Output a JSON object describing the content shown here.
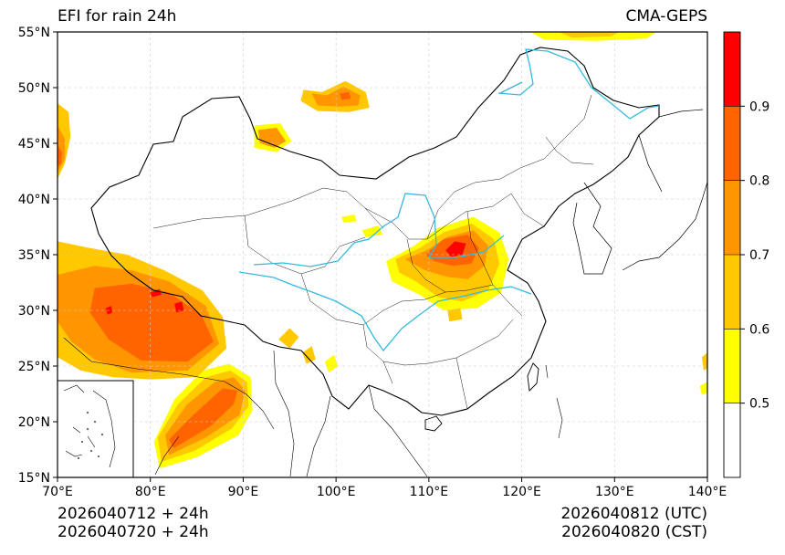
{
  "header": {
    "title": "EFI for rain 24h",
    "source": "CMA-GEPS"
  },
  "footer": {
    "init_utc": "2026040712 + 24h",
    "init_cst": "2026040720 + 24h",
    "valid_utc": "2026040812 (UTC)",
    "valid_cst": "2026040820 (CST)"
  },
  "map": {
    "extent": {
      "lon_min": 70,
      "lon_max": 140,
      "lat_min": 15,
      "lat_max": 55
    },
    "lat_ticks": [
      {
        "value": 55,
        "label": "55°N"
      },
      {
        "value": 50,
        "label": "50°N"
      },
      {
        "value": 45,
        "label": "45°N"
      },
      {
        "value": 40,
        "label": "40°N"
      },
      {
        "value": 35,
        "label": "35°N"
      },
      {
        "value": 30,
        "label": "30°N"
      },
      {
        "value": 25,
        "label": "25°N"
      },
      {
        "value": 20,
        "label": "20°N"
      },
      {
        "value": 15,
        "label": "15°N"
      }
    ],
    "lon_ticks": [
      {
        "value": 70,
        "label": "70°E"
      },
      {
        "value": 80,
        "label": "80°E"
      },
      {
        "value": 90,
        "label": "90°E"
      },
      {
        "value": 100,
        "label": "100°E"
      },
      {
        "value": 110,
        "label": "110°E"
      },
      {
        "value": 120,
        "label": "120°E"
      },
      {
        "value": 130,
        "label": "130°E"
      },
      {
        "value": 140,
        "label": "140°E"
      }
    ],
    "grid": true,
    "inset": "south-china-sea-islands"
  },
  "colorbar": {
    "levels": [
      0.5,
      0.6,
      0.7,
      0.8,
      0.9
    ],
    "labels": [
      "0.5",
      "0.6",
      "0.7",
      "0.8",
      "0.9"
    ],
    "colors": [
      "#ffffff",
      "#ffff00",
      "#ffc800",
      "#ff9600",
      "#ff6400",
      "#ff0000"
    ]
  },
  "colors": {
    "rivers": "#33bbdd",
    "border": "#000000",
    "grid": "#cccccc"
  },
  "regions": [
    {
      "name": "tibet-plateau-high",
      "level": 0.9,
      "pts": [
        [
          82.6,
          30.6
        ],
        [
          82.8,
          29.8
        ],
        [
          83.6,
          30.0
        ],
        [
          83.4,
          30.8
        ]
      ]
    },
    {
      "name": "tibet-plateau-high",
      "level": 0.9,
      "pts": [
        [
          75.4,
          29.6
        ],
        [
          75.9,
          29.8
        ],
        [
          75.8,
          30.4
        ],
        [
          75.2,
          30.2
        ]
      ]
    },
    {
      "name": "tibet-plateau-high",
      "level": 0.9,
      "pts": [
        [
          80.2,
          31.2
        ],
        [
          81.2,
          31.4
        ],
        [
          81.0,
          31.9
        ],
        [
          80.0,
          31.6
        ]
      ]
    },
    {
      "name": "tibet-plateau-mid",
      "level": 0.8,
      "pts": [
        [
          74.0,
          32.0
        ],
        [
          78.0,
          32.4
        ],
        [
          82.0,
          31.6
        ],
        [
          85.5,
          29.6
        ],
        [
          86.8,
          27.2
        ],
        [
          84.0,
          25.4
        ],
        [
          79.0,
          25.5
        ],
        [
          75.5,
          27.4
        ],
        [
          73.5,
          29.8
        ]
      ]
    },
    {
      "name": "tibet-plateau-low",
      "level": 0.7,
      "pts": [
        [
          70.0,
          33.2
        ],
        [
          74.0,
          34.0
        ],
        [
          78.0,
          33.6
        ],
        [
          82.0,
          32.6
        ],
        [
          86.0,
          30.4
        ],
        [
          87.4,
          27.0
        ],
        [
          84.0,
          24.6
        ],
        [
          78.0,
          24.4
        ],
        [
          74.0,
          25.6
        ],
        [
          71.5,
          27.2
        ],
        [
          70.0,
          29.0
        ]
      ]
    },
    {
      "name": "tibet-plateau-edge",
      "level": 0.6,
      "pts": [
        [
          70.0,
          36.2
        ],
        [
          73.5,
          35.6
        ],
        [
          77.5,
          35.0
        ],
        [
          81.5,
          33.6
        ],
        [
          85.6,
          31.8
        ],
        [
          87.8,
          29.4
        ],
        [
          88.2,
          26.6
        ],
        [
          85.0,
          24.0
        ],
        [
          80.0,
          23.8
        ],
        [
          76.0,
          24.0
        ],
        [
          72.5,
          24.6
        ],
        [
          70.0,
          25.8
        ]
      ]
    },
    {
      "name": "bay-of-bengal-high",
      "level": 0.8,
      "pts": [
        [
          82.5,
          17.6
        ],
        [
          86.5,
          19.6
        ],
        [
          89.0,
          21.6
        ],
        [
          89.4,
          22.8
        ],
        [
          87.8,
          23.0
        ],
        [
          84.6,
          20.6
        ],
        [
          82.0,
          18.4
        ]
      ]
    },
    {
      "name": "bay-of-bengal-mid",
      "level": 0.7,
      "pts": [
        [
          82.0,
          17.0
        ],
        [
          86.0,
          18.6
        ],
        [
          89.6,
          20.6
        ],
        [
          90.2,
          22.8
        ],
        [
          89.0,
          24.0
        ],
        [
          87.0,
          23.6
        ],
        [
          84.0,
          21.6
        ],
        [
          81.6,
          18.8
        ]
      ]
    },
    {
      "name": "bay-of-bengal-low",
      "level": 0.6,
      "pts": [
        [
          81.2,
          16.4
        ],
        [
          84.8,
          17.4
        ],
        [
          88.8,
          19.4
        ],
        [
          90.6,
          21.4
        ],
        [
          90.4,
          23.6
        ],
        [
          88.6,
          24.6
        ],
        [
          86.0,
          24.0
        ],
        [
          83.0,
          21.6
        ],
        [
          80.8,
          18.6
        ]
      ]
    },
    {
      "name": "bay-of-bengal-edge",
      "level": 0.5,
      "pts": [
        [
          81.0,
          15.8
        ],
        [
          85.0,
          16.8
        ],
        [
          89.5,
          18.8
        ],
        [
          91.0,
          21.0
        ],
        [
          90.8,
          24.0
        ],
        [
          88.5,
          25.2
        ],
        [
          85.6,
          24.6
        ],
        [
          82.6,
          22.0
        ],
        [
          80.4,
          18.2
        ]
      ]
    },
    {
      "name": "kazakh-edge",
      "level": 0.6,
      "pts": [
        [
          70.0,
          48.6
        ],
        [
          71.2,
          47.8
        ],
        [
          71.4,
          45.6
        ],
        [
          70.8,
          43.2
        ],
        [
          70.0,
          41.8
        ]
      ]
    },
    {
      "name": "kazakh-mid",
      "level": 0.7,
      "pts": [
        [
          70.0,
          46.6
        ],
        [
          70.8,
          45.4
        ],
        [
          70.8,
          43.6
        ],
        [
          70.0,
          42.4
        ]
      ]
    },
    {
      "name": "kazakh-high",
      "level": 0.8,
      "pts": [
        [
          70.0,
          44.8
        ],
        [
          70.5,
          44.2
        ],
        [
          70.4,
          43.2
        ],
        [
          70.0,
          42.9
        ]
      ]
    },
    {
      "name": "mongolia-edge",
      "level": 0.6,
      "pts": [
        [
          96.5,
          49.8
        ],
        [
          98.5,
          49.6
        ],
        [
          101.0,
          50.6
        ],
        [
          103.2,
          49.6
        ],
        [
          103.6,
          48.2
        ],
        [
          101.4,
          47.8
        ],
        [
          98.0,
          47.9
        ],
        [
          96.2,
          48.8
        ]
      ]
    },
    {
      "name": "mongolia-mid",
      "level": 0.7,
      "pts": [
        [
          97.4,
          49.5
        ],
        [
          99.0,
          49.3
        ],
        [
          100.8,
          50.1
        ],
        [
          102.6,
          49.3
        ],
        [
          102.4,
          48.4
        ],
        [
          100.4,
          48.3
        ],
        [
          98.0,
          48.4
        ]
      ]
    },
    {
      "name": "mongolia-high",
      "level": 0.8,
      "pts": [
        [
          100.4,
          49.5
        ],
        [
          101.4,
          49.6
        ],
        [
          101.6,
          49.0
        ],
        [
          100.6,
          48.9
        ]
      ]
    },
    {
      "name": "altai-patch",
      "level": 0.7,
      "pts": [
        [
          91.6,
          46.2
        ],
        [
          93.6,
          46.4
        ],
        [
          94.6,
          45.2
        ],
        [
          93.4,
          44.6
        ],
        [
          91.8,
          45.0
        ]
      ]
    },
    {
      "name": "altai-patch-edge",
      "level": 0.5,
      "pts": [
        [
          91.2,
          46.6
        ],
        [
          94.0,
          46.8
        ],
        [
          95.2,
          45.2
        ],
        [
          93.6,
          44.2
        ],
        [
          91.2,
          44.6
        ]
      ]
    },
    {
      "name": "amur-edge",
      "level": 0.5,
      "pts": [
        [
          121.0,
          55.0
        ],
        [
          134.5,
          55.0
        ],
        [
          133.4,
          54.4
        ],
        [
          128.0,
          54.2
        ],
        [
          122.4,
          54.3
        ]
      ]
    },
    {
      "name": "amur-mid",
      "level": 0.6,
      "pts": [
        [
          124.0,
          55.0
        ],
        [
          130.5,
          55.0
        ],
        [
          129.6,
          54.6
        ],
        [
          125.4,
          54.5
        ]
      ]
    },
    {
      "name": "central-china-edge",
      "level": 0.5,
      "pts": [
        [
          105.4,
          34.4
        ],
        [
          108.4,
          35.8
        ],
        [
          111.0,
          37.4
        ],
        [
          114.8,
          38.4
        ],
        [
          117.6,
          37.0
        ],
        [
          118.6,
          34.6
        ],
        [
          117.8,
          31.6
        ],
        [
          115.2,
          30.2
        ],
        [
          111.6,
          30.0
        ],
        [
          109.0,
          31.4
        ],
        [
          106.0,
          32.6
        ]
      ]
    },
    {
      "name": "central-china-low",
      "level": 0.6,
      "pts": [
        [
          106.4,
          34.6
        ],
        [
          109.0,
          35.6
        ],
        [
          111.6,
          37.0
        ],
        [
          114.6,
          37.8
        ],
        [
          117.0,
          36.4
        ],
        [
          117.6,
          34.2
        ],
        [
          116.4,
          31.8
        ],
        [
          113.6,
          30.8
        ],
        [
          111.0,
          31.2
        ],
        [
          108.6,
          32.6
        ],
        [
          106.8,
          33.4
        ]
      ]
    },
    {
      "name": "central-china-mid",
      "level": 0.7,
      "pts": [
        [
          107.4,
          34.6
        ],
        [
          109.8,
          35.4
        ],
        [
          112.0,
          36.6
        ],
        [
          114.8,
          37.2
        ],
        [
          116.4,
          35.8
        ],
        [
          116.0,
          34.0
        ],
        [
          114.2,
          32.8
        ],
        [
          112.0,
          33.0
        ],
        [
          109.6,
          33.6
        ]
      ]
    },
    {
      "name": "central-china-high",
      "level": 0.8,
      "pts": [
        [
          109.6,
          35.0
        ],
        [
          111.6,
          36.4
        ],
        [
          114.2,
          36.8
        ],
        [
          115.4,
          35.6
        ],
        [
          114.6,
          34.2
        ],
        [
          112.6,
          34.0
        ],
        [
          110.6,
          34.4
        ]
      ]
    },
    {
      "name": "central-china-peak",
      "level": 0.9,
      "pts": [
        [
          111.8,
          35.4
        ],
        [
          112.8,
          36.2
        ],
        [
          114.0,
          36.0
        ],
        [
          113.6,
          35.0
        ],
        [
          112.4,
          34.8
        ]
      ]
    },
    {
      "name": "sichuan-patch",
      "level": 0.5,
      "pts": [
        [
          102.8,
          37.2
        ],
        [
          104.6,
          37.6
        ],
        [
          105.0,
          36.8
        ],
        [
          103.2,
          36.6
        ]
      ]
    },
    {
      "name": "sichuan-patch",
      "level": 0.5,
      "pts": [
        [
          100.6,
          38.4
        ],
        [
          102.0,
          38.6
        ],
        [
          102.2,
          38.0
        ],
        [
          100.8,
          37.9
        ]
      ]
    },
    {
      "name": "hubei-patch",
      "level": 0.6,
      "pts": [
        [
          112.0,
          30.0
        ],
        [
          113.4,
          30.2
        ],
        [
          113.6,
          29.2
        ],
        [
          112.2,
          29.0
        ]
      ]
    },
    {
      "name": "yunnan-patch",
      "level": 0.6,
      "pts": [
        [
          93.8,
          27.4
        ],
        [
          95.0,
          28.4
        ],
        [
          96.0,
          27.6
        ],
        [
          95.0,
          26.6
        ]
      ]
    },
    {
      "name": "yunnan-patch",
      "level": 0.6,
      "pts": [
        [
          96.4,
          26.2
        ],
        [
          97.4,
          26.8
        ],
        [
          97.8,
          25.6
        ],
        [
          96.8,
          25.2
        ]
      ]
    },
    {
      "name": "burma-patch",
      "level": 0.5,
      "pts": [
        [
          98.8,
          25.4
        ],
        [
          99.8,
          26.0
        ],
        [
          100.2,
          25.0
        ],
        [
          99.2,
          24.4
        ]
      ]
    },
    {
      "name": "korea-patch",
      "level": 0.5,
      "pts": [
        [
          139.2,
          23.2
        ],
        [
          140.0,
          23.6
        ],
        [
          140.0,
          22.6
        ],
        [
          139.4,
          22.4
        ]
      ]
    },
    {
      "name": "east-sea-patch",
      "level": 0.6,
      "pts": [
        [
          139.4,
          25.8
        ],
        [
          140.0,
          26.2
        ],
        [
          140.0,
          24.8
        ],
        [
          139.6,
          24.6
        ]
      ]
    }
  ]
}
